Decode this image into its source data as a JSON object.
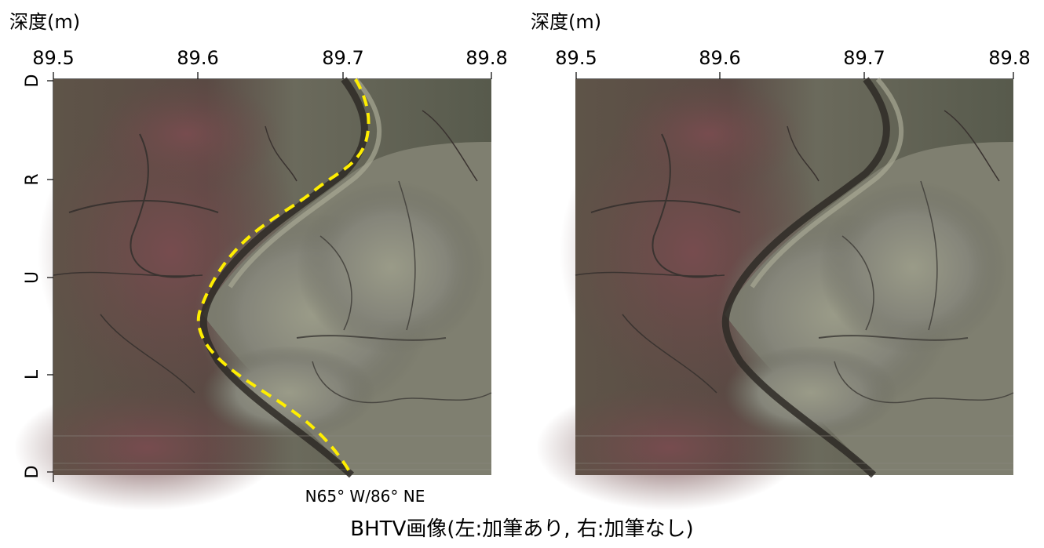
{
  "figure": {
    "left_panel": {
      "depth_label": "深度(m)",
      "ticks": [
        "89.5",
        "89.6",
        "89.7",
        "89.8"
      ],
      "orientation_labels": [
        "D",
        "R",
        "U",
        "L",
        "D"
      ],
      "fracture_note": "N65° W/86° NE",
      "annotated": true,
      "trace_color": "#ffee00"
    },
    "right_panel": {
      "depth_label": "深度(m)",
      "ticks": [
        "89.5",
        "89.6",
        "89.7",
        "89.8"
      ],
      "annotated": false
    },
    "caption": "BHTV画像(左:加筆あり, 右:加筆なし)"
  }
}
